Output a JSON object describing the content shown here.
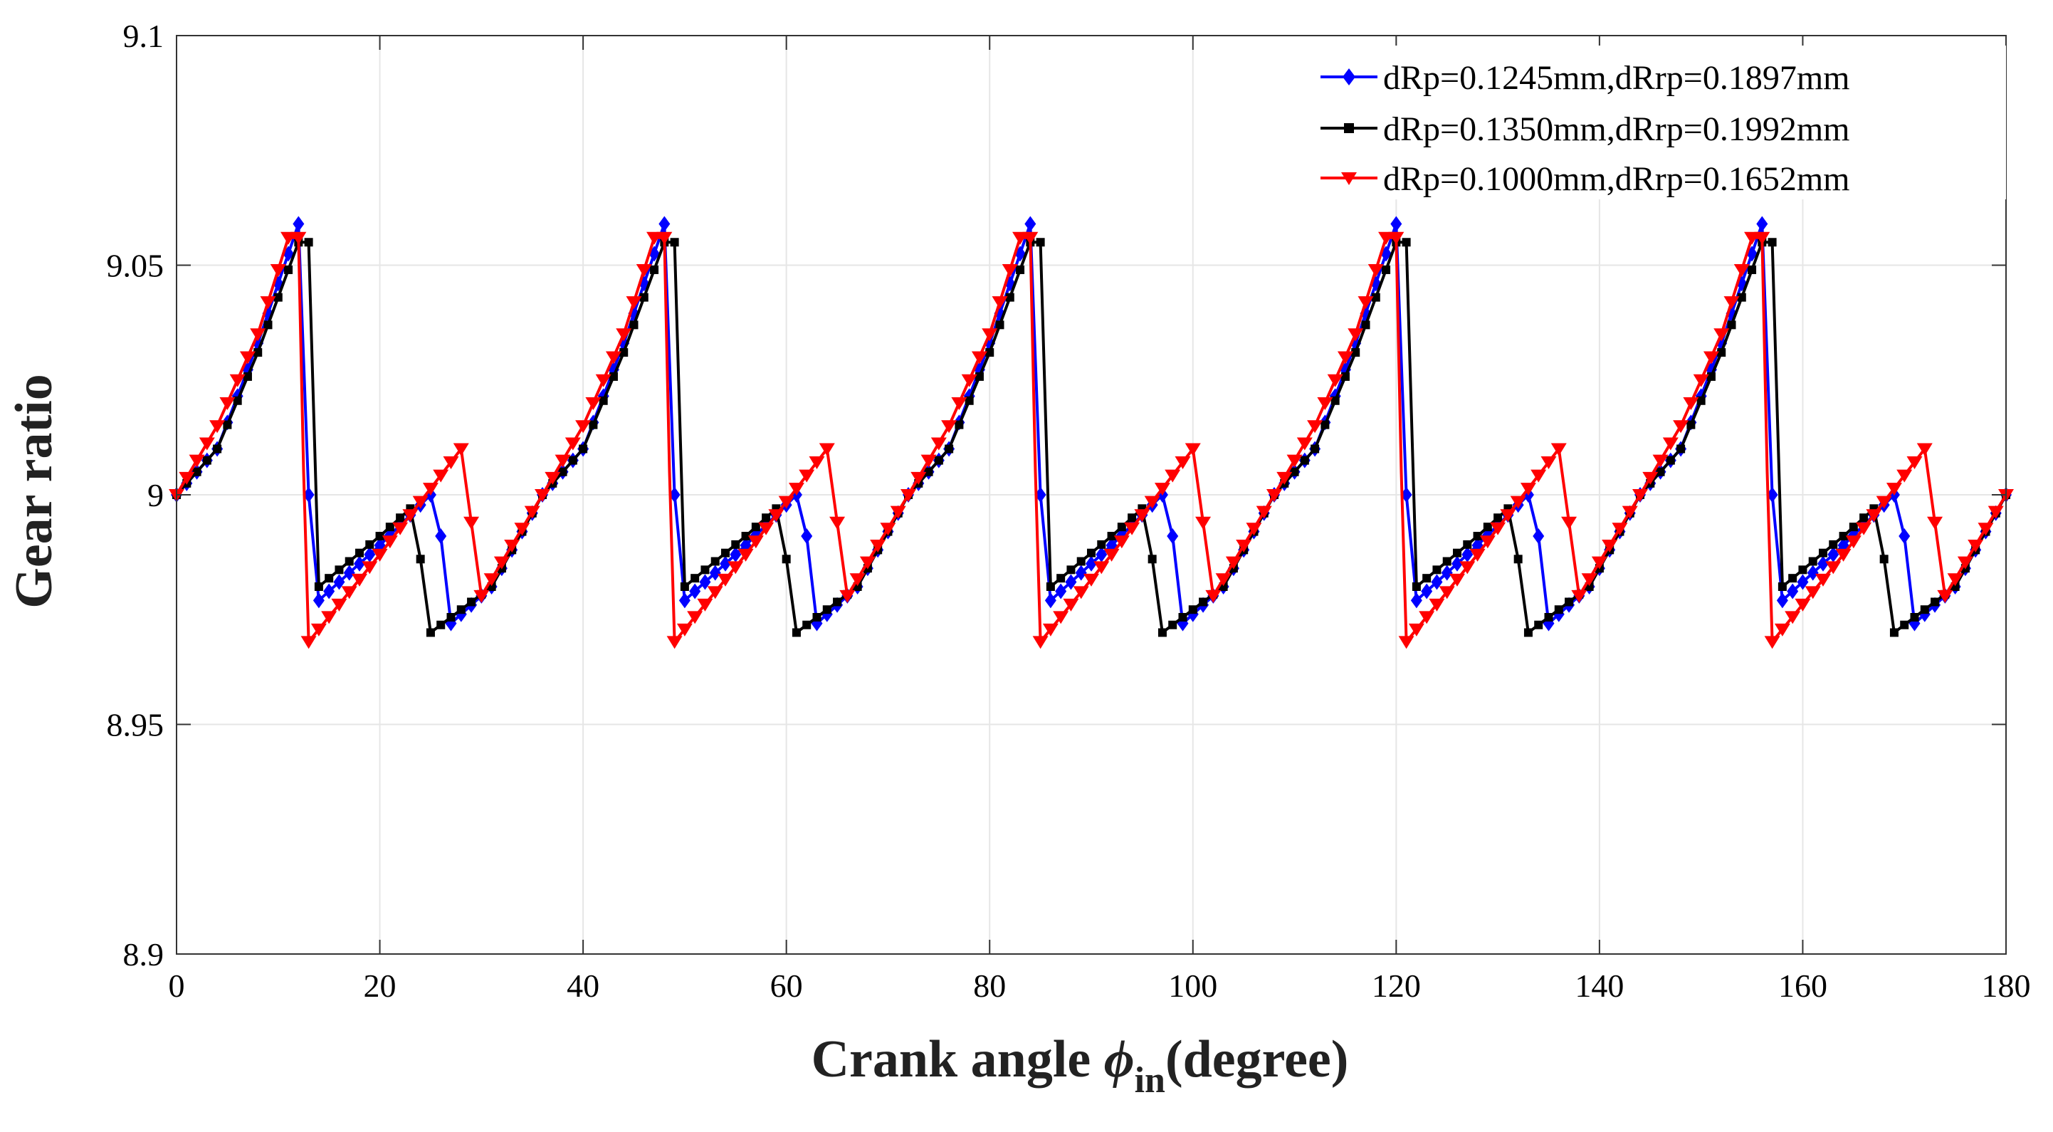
{
  "chart_data": {
    "type": "line",
    "xlabel_main": "Crank angle ",
    "xlabel_symbol": "ϕ",
    "xlabel_sub": "in",
    "xlabel_tail": "(degree)",
    "ylabel": "Gear ratio",
    "xlim": [
      0,
      180
    ],
    "ylim": [
      8.9,
      9.1
    ],
    "xticks": [
      0,
      20,
      40,
      60,
      80,
      100,
      120,
      140,
      160,
      180
    ],
    "xtick_labels": [
      "0",
      "20",
      "40",
      "60",
      "80",
      "100",
      "120",
      "140",
      "160",
      "180"
    ],
    "yticks": [
      8.9,
      8.95,
      9.0,
      9.05,
      9.1
    ],
    "ytick_labels": [
      "8.9",
      "8.95",
      "9",
      "9.05",
      "9.1"
    ],
    "grid": true,
    "legend_position": "top-right",
    "period": 36,
    "series": [
      {
        "name": "dRp=0.1245mm,dRrp=0.1897mm",
        "color": "#0000ff",
        "marker": "diamond",
        "base_points": [
          [
            0,
            9.0
          ],
          [
            4,
            9.01
          ],
          [
            8,
            9.033
          ],
          [
            12,
            9.059
          ],
          [
            13,
            9.0
          ],
          [
            14,
            8.977
          ],
          [
            20,
            8.989
          ],
          [
            25,
            9.0
          ],
          [
            26,
            8.991
          ],
          [
            27,
            8.972
          ],
          [
            31,
            8.98
          ],
          [
            36,
            9.0
          ]
        ]
      },
      {
        "name": "dRp=0.1350mm,dRrp=0.1992mm",
        "color": "#000000",
        "marker": "square",
        "base_points": [
          [
            0,
            9.0
          ],
          [
            4,
            9.01
          ],
          [
            8,
            9.031
          ],
          [
            12,
            9.055
          ],
          [
            13,
            9.055
          ],
          [
            14,
            8.98
          ],
          [
            20,
            8.991
          ],
          [
            23,
            8.997
          ],
          [
            24,
            8.986
          ],
          [
            25,
            8.97
          ],
          [
            31,
            8.98
          ],
          [
            36,
            9.0
          ]
        ]
      },
      {
        "name": "dRp=0.1000mm,dRrp=0.1652mm",
        "color": "#ff0000",
        "marker": "triangle-down",
        "base_points": [
          [
            0,
            9.0
          ],
          [
            4,
            9.015
          ],
          [
            8,
            9.035
          ],
          [
            11,
            9.056
          ],
          [
            12,
            9.056
          ],
          [
            12.5,
            9.005
          ],
          [
            13,
            8.968
          ],
          [
            20,
            8.987
          ],
          [
            28,
            9.01
          ],
          [
            30,
            8.978
          ],
          [
            36,
            9.0
          ]
        ]
      }
    ]
  }
}
